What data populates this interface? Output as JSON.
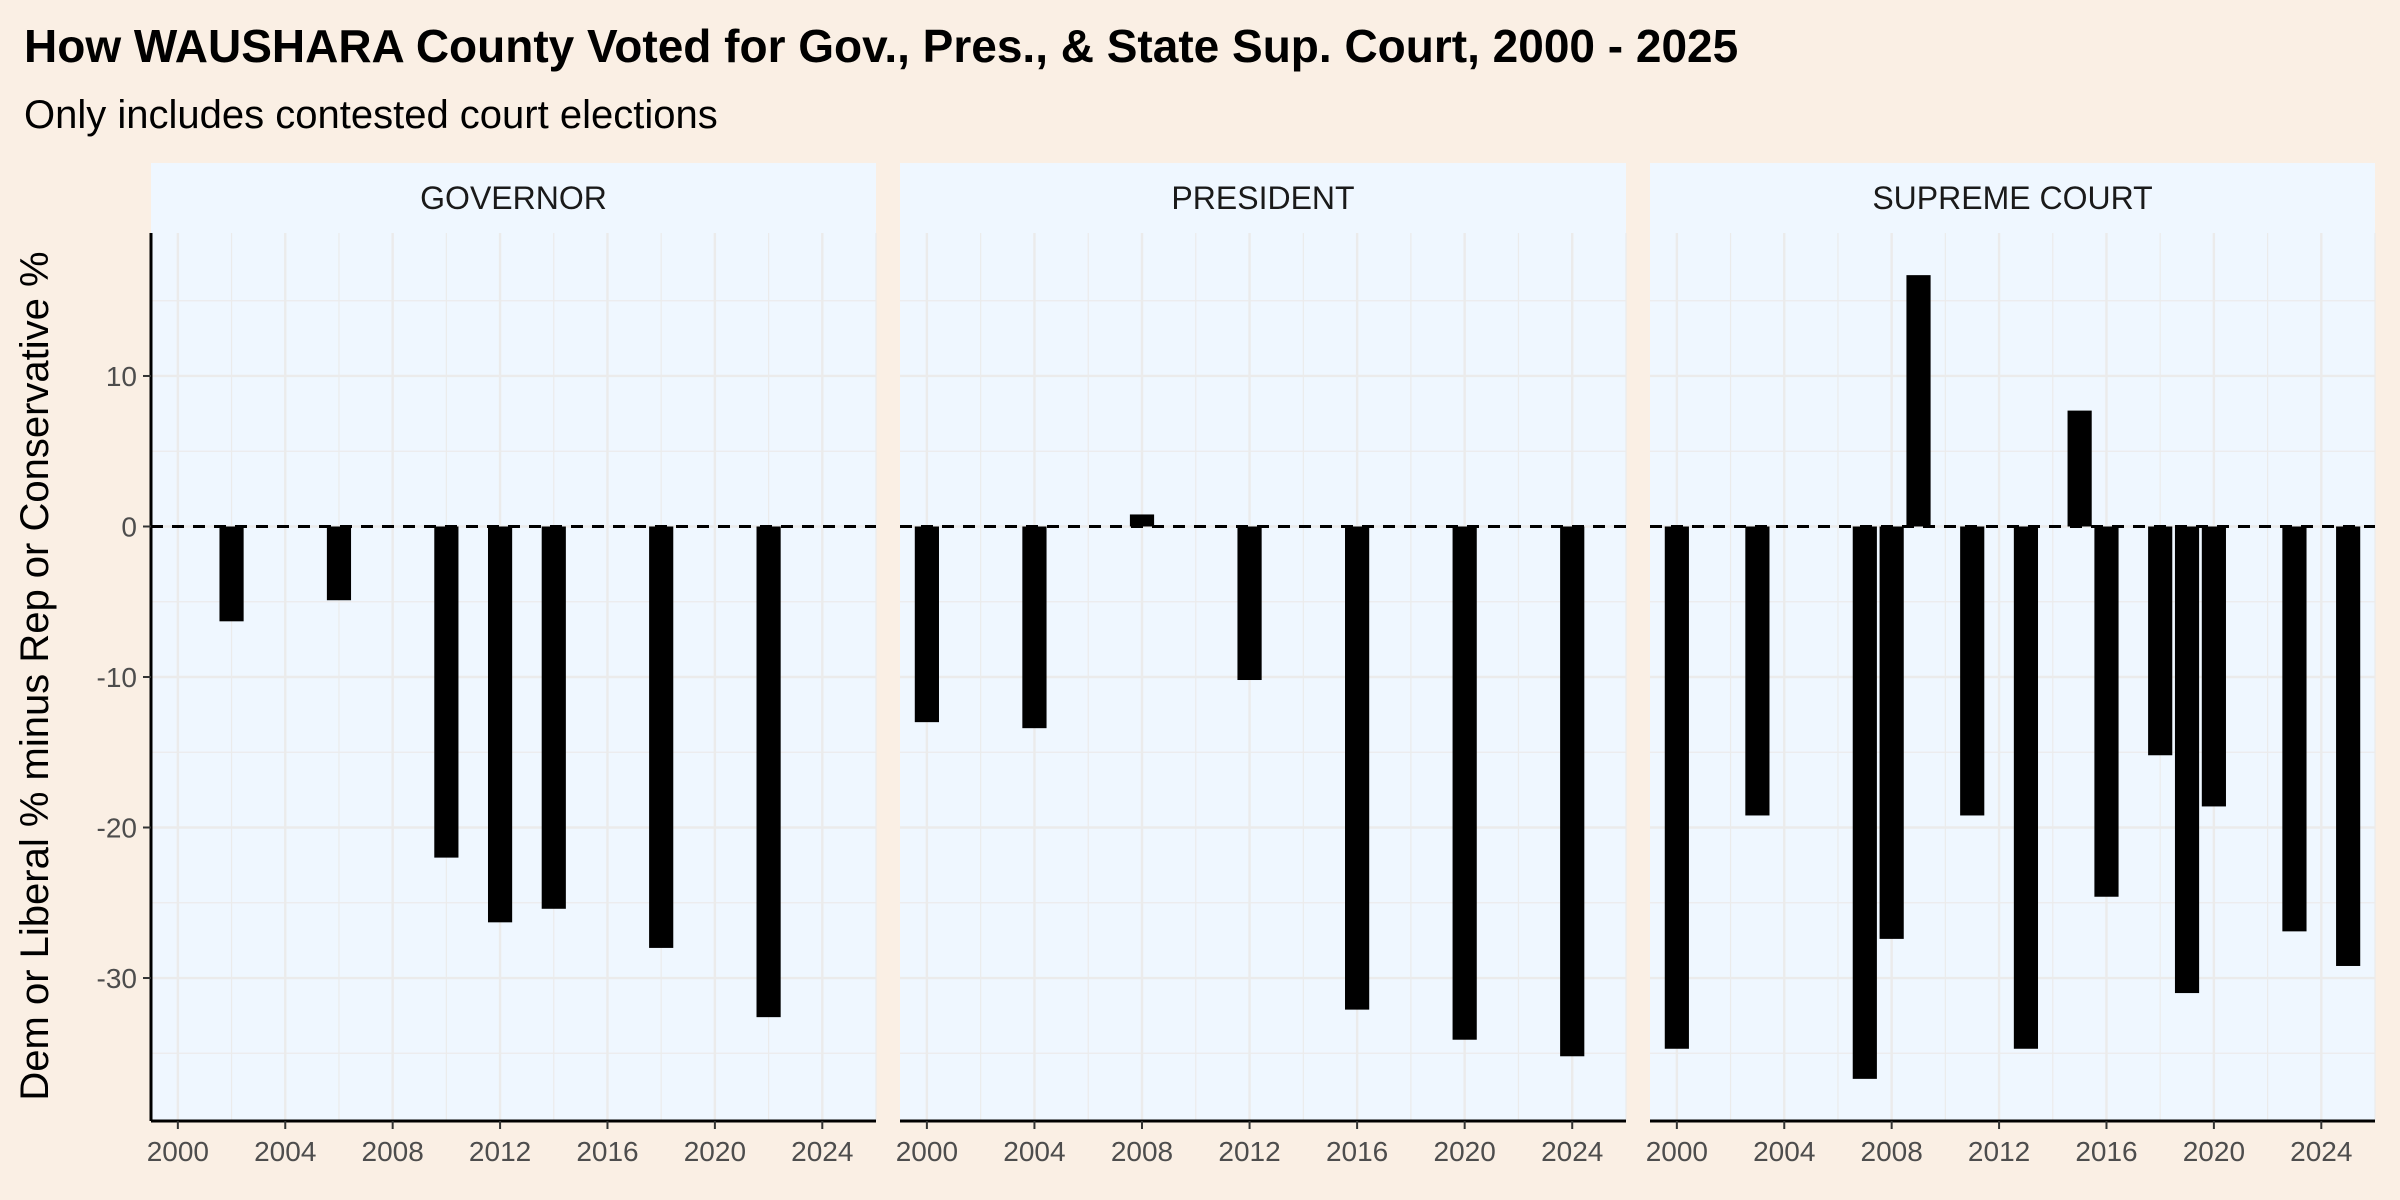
{
  "chart_data": {
    "type": "bar",
    "title": "How WAUSHARA County Voted for Gov., Pres., & State Sup. Court, 2000 - 2025",
    "subtitle": "Only includes contested court elections",
    "ylabel": "Dem or Liberal % minus Rep or Conservative %",
    "xlabel": "",
    "xlim": [
      1999,
      2026
    ],
    "ylim": [
      -39.5,
      19.5
    ],
    "x_ticks": [
      2000,
      2004,
      2008,
      2012,
      2016,
      2020,
      2024
    ],
    "y_ticks": [
      -30,
      -20,
      -10,
      0,
      10
    ],
    "y_tick_labels": [
      "-30",
      "-20",
      "-10",
      "0",
      "10"
    ],
    "reference_line": {
      "y": 0,
      "style": "dashed"
    },
    "grid": true,
    "colors": {
      "bar": "#000000",
      "page_background": "#faefe4",
      "panel_background": "#eff7ff",
      "grid_line": "#ebebeb"
    },
    "facets": [
      {
        "label": "GOVERNOR",
        "points": [
          {
            "x": 2002,
            "y": -6.3
          },
          {
            "x": 2006,
            "y": -4.9
          },
          {
            "x": 2010,
            "y": -22.0
          },
          {
            "x": 2012,
            "y": -26.3
          },
          {
            "x": 2014,
            "y": -25.4
          },
          {
            "x": 2018,
            "y": -28.0
          },
          {
            "x": 2022,
            "y": -32.6
          }
        ]
      },
      {
        "label": "PRESIDENT",
        "points": [
          {
            "x": 2000,
            "y": -13.0
          },
          {
            "x": 2004,
            "y": -13.4
          },
          {
            "x": 2008,
            "y": 0.8
          },
          {
            "x": 2012,
            "y": -10.2
          },
          {
            "x": 2016,
            "y": -32.1
          },
          {
            "x": 2020,
            "y": -34.1
          },
          {
            "x": 2024,
            "y": -35.2
          }
        ]
      },
      {
        "label": "SUPREME COURT",
        "points": [
          {
            "x": 2000,
            "y": -34.7
          },
          {
            "x": 2003,
            "y": -19.2
          },
          {
            "x": 2007,
            "y": -36.7
          },
          {
            "x": 2008,
            "y": -27.4
          },
          {
            "x": 2009,
            "y": 16.7
          },
          {
            "x": 2011,
            "y": -19.2
          },
          {
            "x": 2013,
            "y": -34.7
          },
          {
            "x": 2015,
            "y": 7.7
          },
          {
            "x": 2016,
            "y": -24.6
          },
          {
            "x": 2018,
            "y": -15.2
          },
          {
            "x": 2019,
            "y": -31.0
          },
          {
            "x": 2020,
            "y": -18.6
          },
          {
            "x": 2023,
            "y": -26.9
          },
          {
            "x": 2025,
            "y": -29.2
          }
        ]
      }
    ]
  }
}
